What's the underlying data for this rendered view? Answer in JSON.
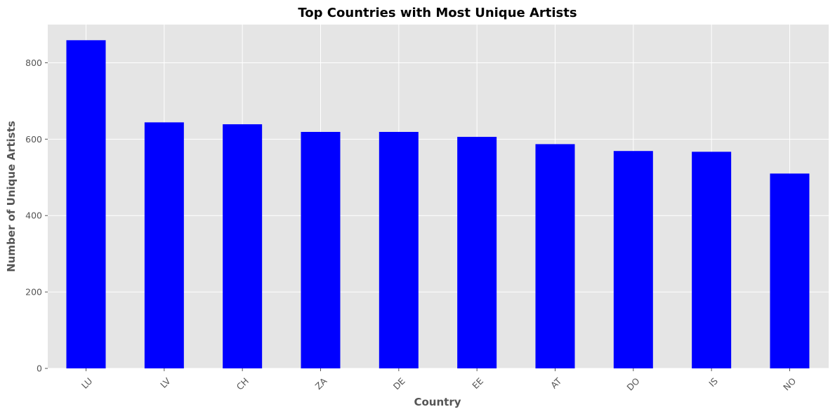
{
  "chart_data": {
    "type": "bar",
    "title": "Top Countries with Most Unique Artists",
    "xlabel": "Country",
    "ylabel": "Number of Unique Artists",
    "categories": [
      "LU",
      "LV",
      "CH",
      "ZA",
      "DE",
      "EE",
      "AT",
      "DO",
      "IS",
      "NO"
    ],
    "values": [
      859,
      644,
      639,
      619,
      619,
      606,
      587,
      569,
      567,
      510
    ],
    "ylim": [
      0,
      900
    ],
    "yticks": [
      0,
      200,
      400,
      600,
      800
    ],
    "ytick_labels": [
      "0",
      "200",
      "400",
      "600",
      "800"
    ],
    "grid": true,
    "legend": "none",
    "colors": {
      "bar": "#0000ff",
      "plot_background": "#e5e5e5",
      "grid": "#ffffff",
      "tick_label": "#555555",
      "axis_label": "#555555",
      "title": "#000000"
    }
  }
}
